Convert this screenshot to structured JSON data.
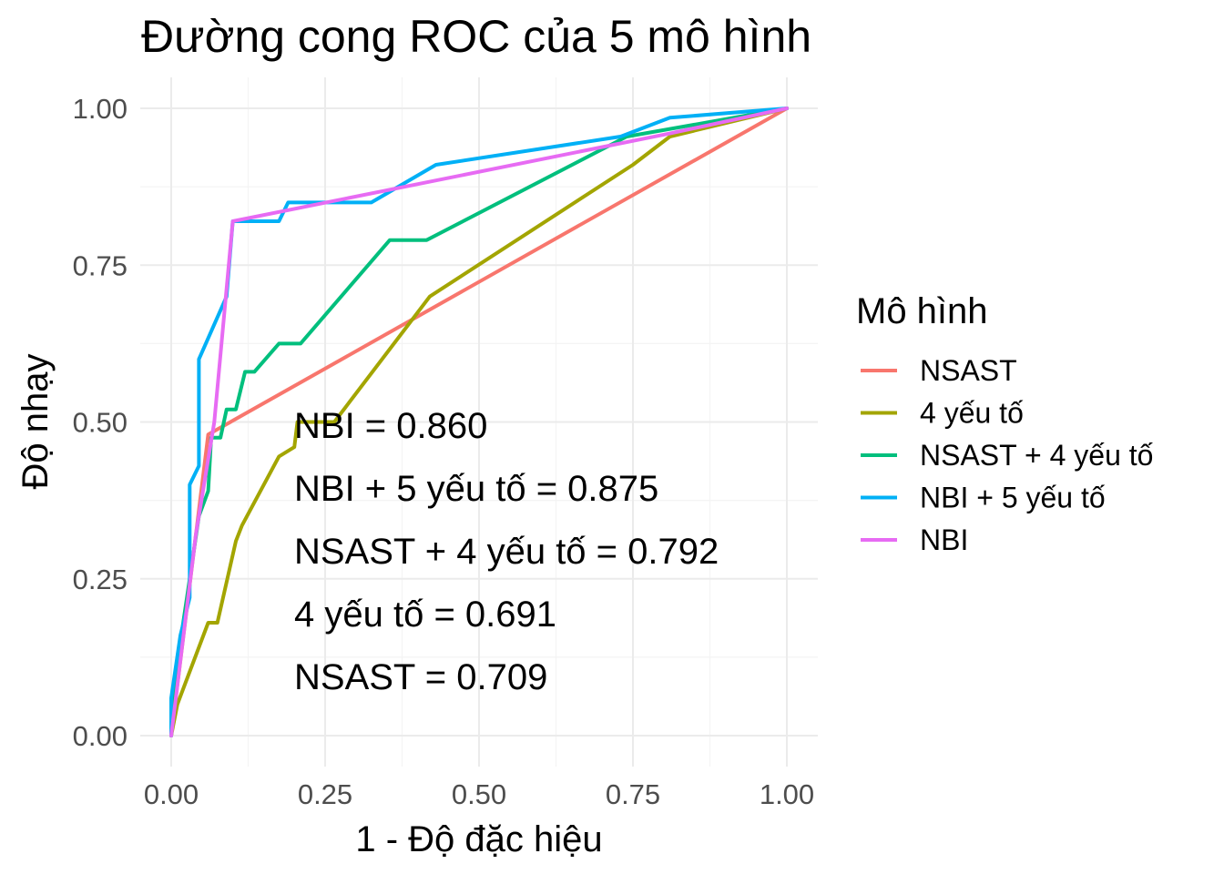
{
  "chart_data": {
    "type": "line",
    "title": "Đường cong ROC của 5 mô hình",
    "xlabel": "1 - Độ đặc hiệu",
    "ylabel": "Độ nhạy",
    "xlim": [
      0,
      1
    ],
    "ylim": [
      0,
      1
    ],
    "x_ticks": [
      "0.00",
      "0.25",
      "0.50",
      "0.75",
      "1.00"
    ],
    "y_ticks": [
      "0.00",
      "0.25",
      "0.50",
      "0.75",
      "1.00"
    ],
    "grid": true,
    "legend_title": "Mô hình",
    "legend_position": "right",
    "series": [
      {
        "name": "NSAST",
        "color": "#F8766D",
        "points": [
          [
            0,
            0
          ],
          [
            0.06,
            0.48
          ],
          [
            1,
            1
          ]
        ]
      },
      {
        "name": "4 yếu tố",
        "color": "#A3A500",
        "points": [
          [
            0,
            0
          ],
          [
            0.01,
            0.05
          ],
          [
            0.06,
            0.18
          ],
          [
            0.075,
            0.18
          ],
          [
            0.105,
            0.31
          ],
          [
            0.115,
            0.335
          ],
          [
            0.175,
            0.445
          ],
          [
            0.2,
            0.46
          ],
          [
            0.205,
            0.5
          ],
          [
            0.265,
            0.5
          ],
          [
            0.42,
            0.7
          ],
          [
            0.75,
            0.91
          ],
          [
            0.81,
            0.955
          ],
          [
            1,
            1
          ]
        ]
      },
      {
        "name": "NSAST + 4 yếu tố",
        "color": "#00BF7D",
        "points": [
          [
            0,
            0
          ],
          [
            0.005,
            0.06
          ],
          [
            0.015,
            0.15
          ],
          [
            0.03,
            0.25
          ],
          [
            0.045,
            0.35
          ],
          [
            0.06,
            0.39
          ],
          [
            0.065,
            0.475
          ],
          [
            0.08,
            0.475
          ],
          [
            0.09,
            0.52
          ],
          [
            0.105,
            0.52
          ],
          [
            0.12,
            0.58
          ],
          [
            0.135,
            0.58
          ],
          [
            0.175,
            0.625
          ],
          [
            0.21,
            0.625
          ],
          [
            0.355,
            0.79
          ],
          [
            0.415,
            0.79
          ],
          [
            0.74,
            0.955
          ],
          [
            1,
            1
          ]
        ]
      },
      {
        "name": "NBI + 5 yếu tố",
        "color": "#00B0F6",
        "points": [
          [
            0,
            0
          ],
          [
            0,
            0.06
          ],
          [
            0.015,
            0.16
          ],
          [
            0.03,
            0.22
          ],
          [
            0.03,
            0.4
          ],
          [
            0.045,
            0.43
          ],
          [
            0.045,
            0.6
          ],
          [
            0.09,
            0.7
          ],
          [
            0.1,
            0.82
          ],
          [
            0.175,
            0.82
          ],
          [
            0.19,
            0.85
          ],
          [
            0.325,
            0.85
          ],
          [
            0.43,
            0.91
          ],
          [
            0.73,
            0.955
          ],
          [
            0.81,
            0.985
          ],
          [
            1,
            1
          ]
        ]
      },
      {
        "name": "NBI",
        "color": "#E76BF3",
        "points": [
          [
            0,
            0
          ],
          [
            0.015,
            0.12
          ],
          [
            0.04,
            0.32
          ],
          [
            0.07,
            0.5
          ],
          [
            0.1,
            0.82
          ],
          [
            0.81,
            0.96
          ],
          [
            1,
            1
          ]
        ]
      }
    ],
    "annotations": [
      "NBI = 0.860",
      "NBI + 5 yếu tố = 0.875",
      "NSAST + 4 yếu tố = 0.792",
      "4 yếu tố = 0.691",
      "NSAST = 0.709"
    ]
  }
}
